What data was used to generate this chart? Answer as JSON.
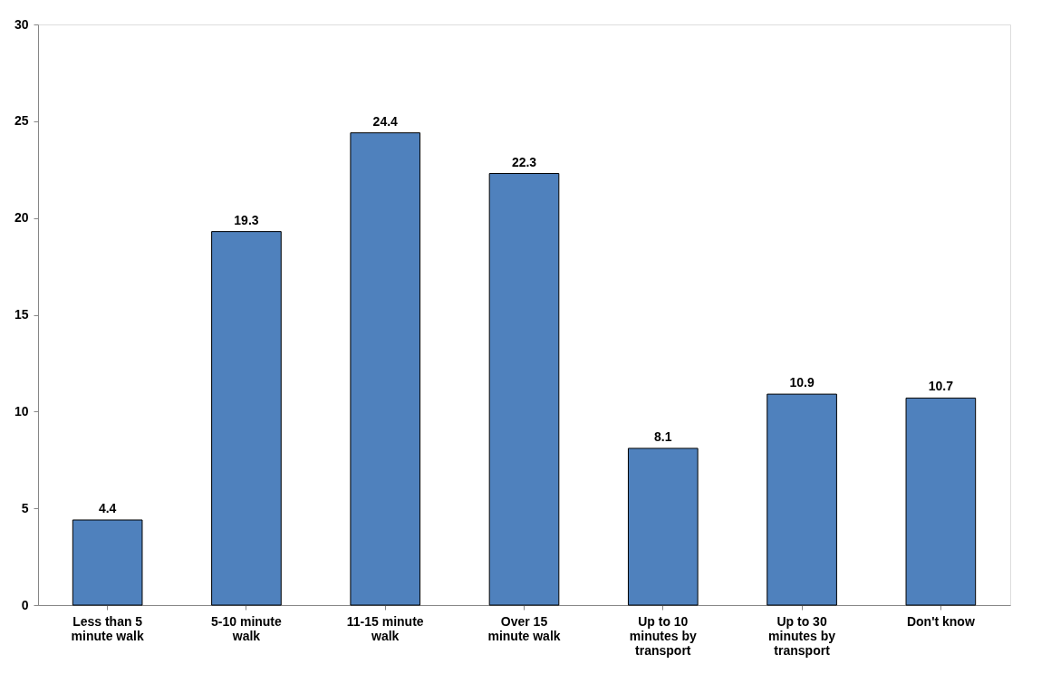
{
  "chart_data": {
    "type": "bar",
    "categories": [
      "Less than 5 minute walk",
      "5-10 minute walk",
      "11-15 minute walk",
      "Over 15 minute walk",
      "Up to 10 minutes by transport",
      "Up to 30 minutes by transport",
      "Don't know"
    ],
    "values": [
      4.4,
      19.3,
      24.4,
      22.3,
      8.1,
      10.9,
      10.7
    ],
    "color": "#4f81bd",
    "ylim": [
      0,
      30
    ],
    "yticks": [
      0,
      5,
      10,
      15,
      20,
      25,
      30
    ],
    "grid": false,
    "data_labels": true
  }
}
